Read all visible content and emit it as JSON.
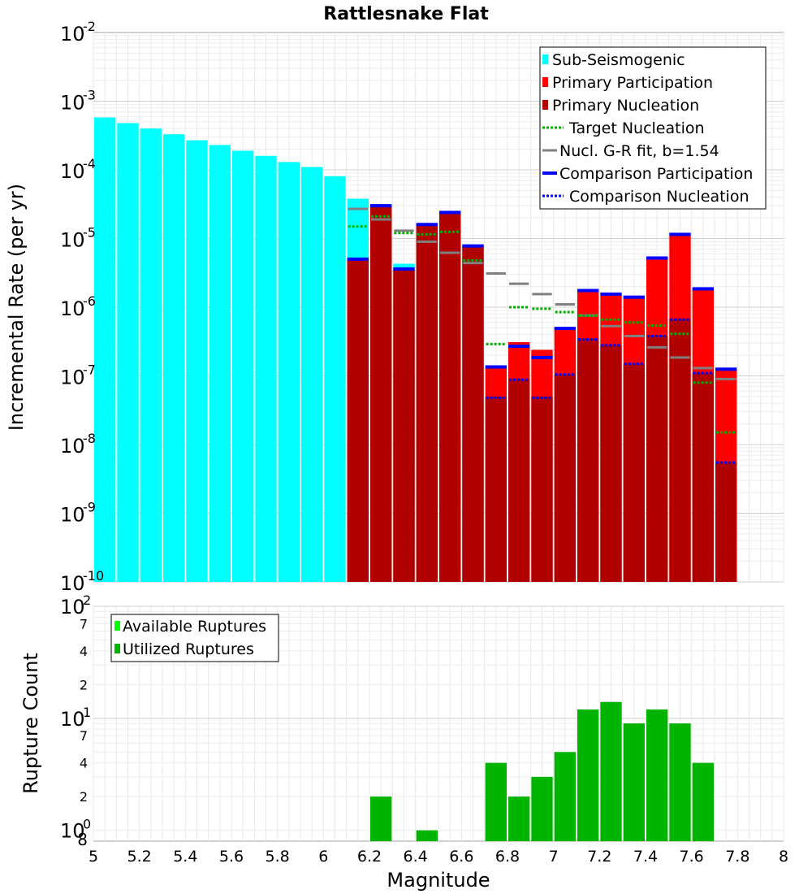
{
  "colors": {
    "sub_seismogenic": "#00ffff",
    "primary_participation": "#ff0000",
    "primary_nucleation": "#b00000",
    "target_nucleation": "#00b000",
    "gr_fit": "#808080",
    "gr_fit_short": "#303030",
    "comparison": "#0000ff",
    "available": "#00ff00",
    "utilized": "#00b400"
  },
  "chart_data": [
    {
      "type": "bar",
      "title": "Rattlesnake Flat",
      "xlabel": "Magnitude",
      "ylabel": "Incremental Rate (per yr)",
      "yscale": "log",
      "xlim": [
        5,
        8
      ],
      "ylim": [
        1e-10,
        0.01
      ],
      "bin_width": 0.1,
      "y_tick_labels": [
        {
          "base": "10",
          "exp": "-2"
        },
        {
          "base": "10",
          "exp": "-3"
        },
        {
          "base": "10",
          "exp": "-4"
        },
        {
          "base": "10",
          "exp": "-5"
        },
        {
          "base": "10",
          "exp": "-6"
        },
        {
          "base": "10",
          "exp": "-7"
        },
        {
          "base": "10",
          "exp": "-8"
        },
        {
          "base": "10",
          "exp": "-9"
        },
        {
          "base": "10",
          "exp": "-10"
        }
      ],
      "legend": {
        "position": "top-right",
        "entries": [
          {
            "label": "Sub-Seismogenic",
            "style": "box",
            "color": "#00ffff"
          },
          {
            "label": "Primary Participation",
            "style": "box",
            "color": "#ff0000"
          },
          {
            "label": "Primary Nucleation",
            "style": "box",
            "color": "#b00000"
          },
          {
            "label": "Target Nucleation",
            "style": "dotted",
            "color": "#00b000"
          },
          {
            "label": "Nucl. G-R fit, b=1.54",
            "style": "solid",
            "color": "#808080"
          },
          {
            "label": "Comparison Participation",
            "style": "thick",
            "color": "#0000ff"
          },
          {
            "label": "Comparison Nucleation",
            "style": "dotted",
            "color": "#0000ff"
          }
        ]
      },
      "series": [
        {
          "name": "Sub-Seismogenic",
          "x": [
            5.05,
            5.15,
            5.25,
            5.35,
            5.45,
            5.55,
            5.65,
            5.75,
            5.85,
            5.95,
            6.05,
            6.15,
            6.25,
            6.35,
            6.45,
            6.55,
            6.65
          ],
          "values": [
            0.00058,
            0.00048,
            0.0004,
            0.00033,
            0.00027,
            0.00023,
            0.00019,
            0.00016,
            0.00013,
            0.00011,
            8.1e-05,
            3.8e-05,
            2.7e-05,
            4.3e-06,
            1.5e-05,
            2.2e-05,
            7e-06
          ]
        },
        {
          "name": "Primary Participation",
          "x": [
            6.15,
            6.25,
            6.35,
            6.45,
            6.55,
            6.65,
            6.75,
            6.85,
            6.95,
            7.05,
            7.15,
            7.25,
            7.35,
            7.45,
            7.55,
            7.65,
            7.75
          ],
          "values": [
            5e-06,
            3e-05,
            3.5e-06,
            1.6e-05,
            2.4e-05,
            7.8e-06,
            1.3e-07,
            3.1e-07,
            2.4e-07,
            4.9e-07,
            1.75e-06,
            1.5e-06,
            1.4e-06,
            5.3e-06,
            1.1e-05,
            1.85e-06,
            1.25e-07
          ]
        },
        {
          "name": "Primary Nucleation",
          "x": [
            6.15,
            6.25,
            6.35,
            6.45,
            6.55,
            6.65,
            6.75,
            6.85,
            6.95,
            7.05,
            7.15,
            7.25,
            7.35,
            7.45,
            7.55,
            7.65,
            7.75
          ],
          "values": [
            5e-06,
            3e-05,
            3.5e-06,
            1.6e-05,
            2.4e-05,
            7.8e-06,
            5e-08,
            9e-08,
            5e-08,
            1.05e-07,
            3.5e-07,
            2.8e-07,
            1.5e-07,
            3.9e-07,
            6.8e-07,
            1.1e-07,
            5.5e-09
          ]
        },
        {
          "name": "Target Nucleation",
          "x": [
            6.15,
            6.25,
            6.35,
            6.45,
            6.55,
            6.65,
            6.75,
            6.85,
            6.95,
            7.05,
            7.15,
            7.25,
            7.35,
            7.45,
            7.55,
            7.65,
            7.75
          ],
          "values": [
            1.5e-05,
            2.1e-05,
            1.2e-05,
            1.15e-05,
            1.25e-05,
            4.8e-06,
            2.9e-07,
            1e-06,
            9.5e-07,
            8.5e-07,
            7.5e-07,
            6.6e-07,
            6e-07,
            5.4e-07,
            4.1e-07,
            8e-08,
            1.5e-08
          ]
        },
        {
          "name": "Nucl. G-R fit, b=1.54",
          "x": [
            6.15,
            6.25,
            6.35,
            6.45,
            6.55,
            6.65,
            6.75,
            6.85,
            6.95,
            7.05,
            7.15,
            7.25,
            7.35,
            7.45,
            7.55,
            7.65,
            7.75
          ],
          "values": [
            2.7e-05,
            1.9e-05,
            1.3e-05,
            9e-06,
            6.2e-06,
            4.4e-06,
            3.1e-06,
            2.2e-06,
            1.55e-06,
            1.1e-06,
            7.6e-07,
            5.3e-07,
            3.8e-07,
            2.6e-07,
            1.85e-07,
            1.3e-07,
            9e-08
          ]
        },
        {
          "name": "Comparison Participation",
          "x": [
            6.15,
            6.25,
            6.35,
            6.45,
            6.55,
            6.65,
            6.75,
            6.85,
            6.95,
            7.05,
            7.15,
            7.25,
            7.35,
            7.45,
            7.55,
            7.65,
            7.75
          ],
          "values": [
            5e-06,
            3e-05,
            3.6e-06,
            1.6e-05,
            2.4e-05,
            7.8e-06,
            1.35e-07,
            2.7e-07,
            1.85e-07,
            4.9e-07,
            1.75e-06,
            1.55e-06,
            1.4e-06,
            5.2e-06,
            1.15e-05,
            1.85e-06,
            1.25e-07
          ]
        },
        {
          "name": "Comparison Nucleation",
          "x": [
            6.15,
            6.25,
            6.35,
            6.45,
            6.55,
            6.65,
            6.75,
            6.85,
            6.95,
            7.05,
            7.15,
            7.25,
            7.35,
            7.45,
            7.55,
            7.65,
            7.75
          ],
          "values": [
            5e-06,
            3e-05,
            3.6e-06,
            1.6e-05,
            2.4e-05,
            7.8e-06,
            4.8e-08,
            8.8e-08,
            4.8e-08,
            1.05e-07,
            3.4e-07,
            2.8e-07,
            1.5e-07,
            3.8e-07,
            6.6e-07,
            1.1e-07,
            5.5e-09
          ]
        }
      ]
    },
    {
      "type": "bar",
      "title": "",
      "xlabel": "Magnitude",
      "ylabel": "Rupture Count",
      "yscale": "log",
      "xlim": [
        5,
        8
      ],
      "ylim": [
        0.8,
        100
      ],
      "bin_width": 0.1,
      "x_tick_labels": [
        "5",
        "5.2",
        "5.4",
        "5.6",
        "5.8",
        "6",
        "6.2",
        "6.4",
        "6.6",
        "6.8",
        "7",
        "7.2",
        "7.4",
        "7.6",
        "7.8",
        "8"
      ],
      "y_tick_labels": {
        "major": [
          {
            "base": "10",
            "exp": "2"
          },
          {
            "base": "10",
            "exp": "1"
          },
          {
            "base": "10",
            "exp": "0"
          }
        ],
        "minor": [
          "7",
          "4",
          "2",
          "7",
          "4",
          "2",
          "8"
        ]
      },
      "legend": {
        "position": "top-left",
        "entries": [
          {
            "label": "Available Ruptures",
            "color": "#00ff00"
          },
          {
            "label": "Utilized Ruptures",
            "color": "#00b400"
          }
        ]
      },
      "series": [
        {
          "name": "Utilized Ruptures",
          "x": [
            6.25,
            6.45,
            6.75,
            6.85,
            6.95,
            7.05,
            7.15,
            7.25,
            7.35,
            7.45,
            7.55,
            7.65
          ],
          "values": [
            2,
            1,
            4,
            2,
            3,
            5,
            12,
            14,
            9,
            12,
            9,
            4
          ]
        }
      ]
    }
  ]
}
